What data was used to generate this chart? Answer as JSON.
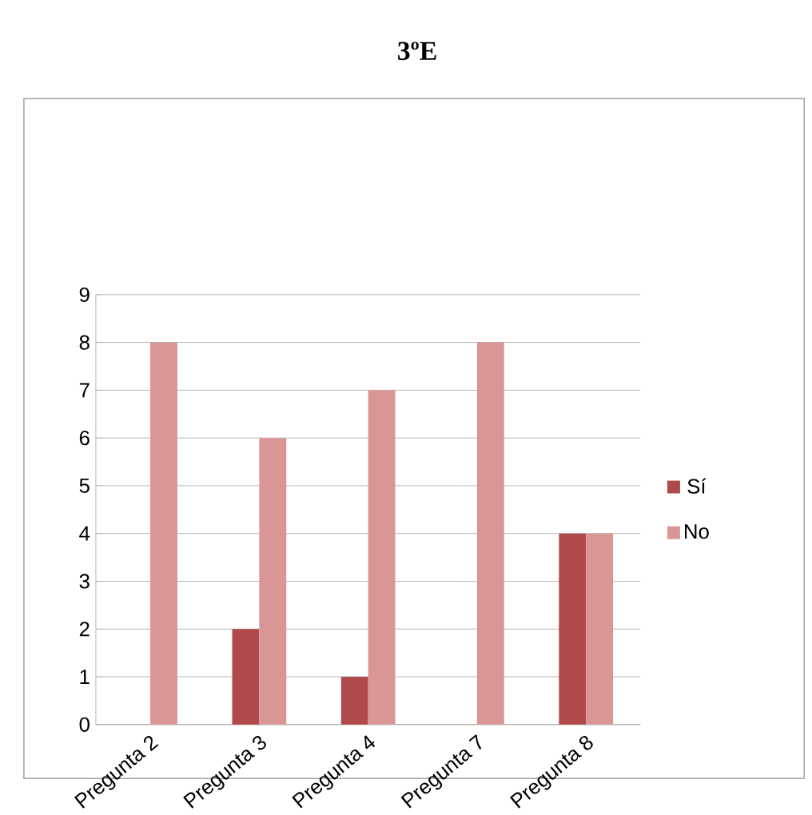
{
  "chart_data": {
    "type": "bar",
    "title": "3ºE",
    "categories": [
      "Pregunta 2",
      "Pregunta 3",
      "Pregunta 4",
      "Pregunta 7",
      "Pregunta 8"
    ],
    "series": [
      {
        "name": "Sí",
        "color": "#b04a4a",
        "values": [
          0,
          2,
          1,
          0,
          4
        ]
      },
      {
        "name": "No",
        "color": "#d99694",
        "values": [
          8,
          6,
          7,
          8,
          4
        ]
      }
    ],
    "ylim": [
      0,
      9
    ],
    "yticks": [
      0,
      1,
      2,
      3,
      4,
      5,
      6,
      7,
      8,
      9
    ],
    "grid": "y",
    "legend": "right"
  }
}
